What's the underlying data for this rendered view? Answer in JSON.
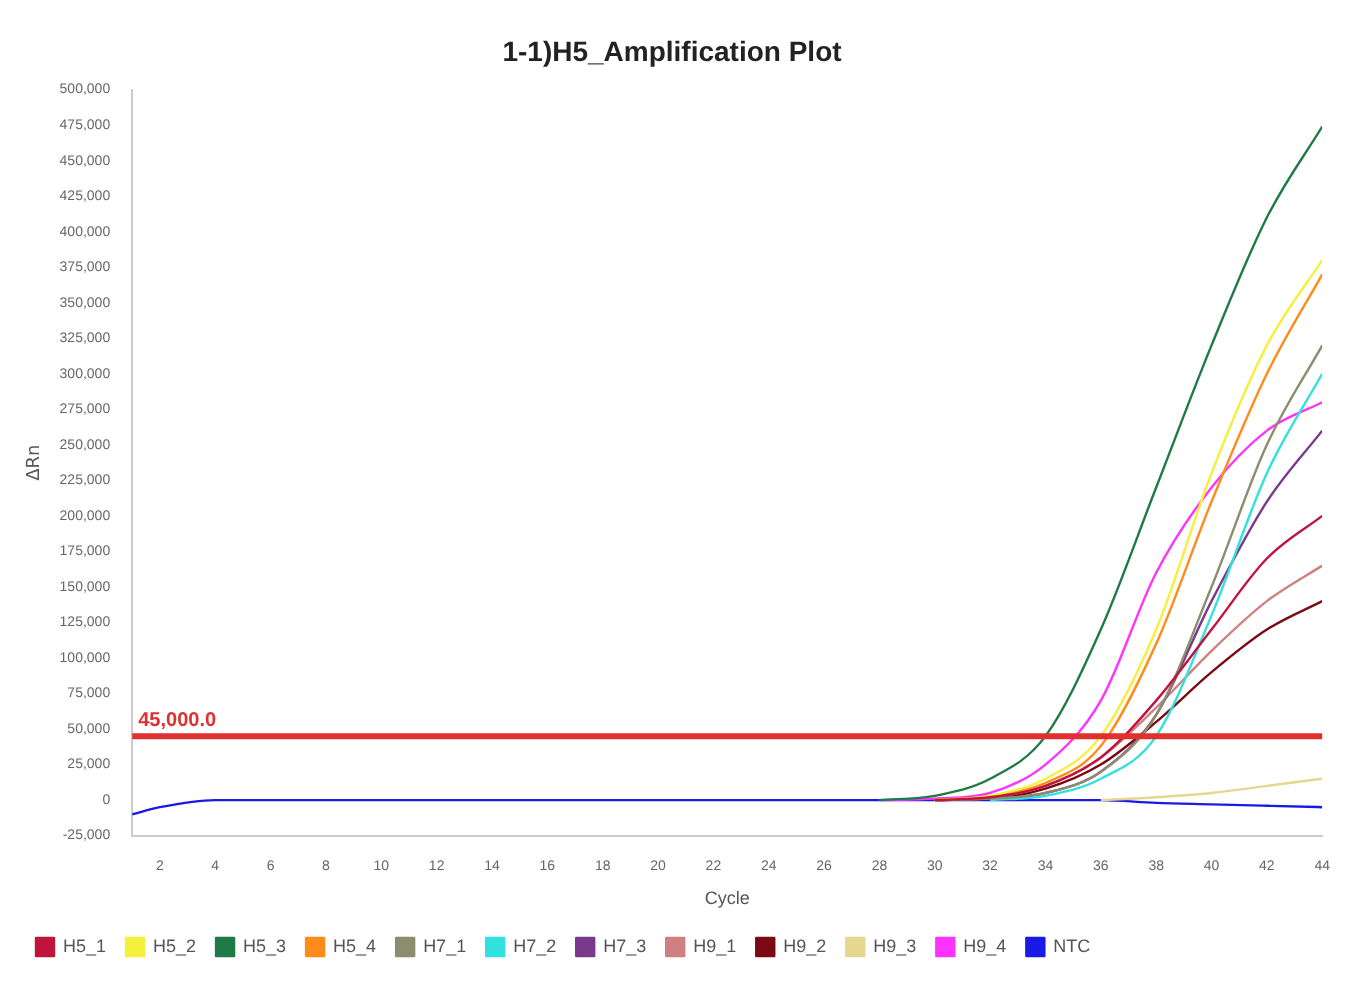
{
  "chart_data": {
    "type": "line",
    "title": "1-1)H5_Amplification Plot",
    "xlabel": "Cycle",
    "ylabel": "ΔRn",
    "x": [
      1,
      2,
      4,
      8,
      12,
      16,
      20,
      24,
      28,
      30,
      32,
      34,
      36,
      38,
      40,
      42,
      44
    ],
    "series": [
      {
        "name": "H5_1",
        "color": "#c0143c",
        "values": [
          null,
          null,
          null,
          null,
          null,
          null,
          null,
          null,
          null,
          0,
          2000,
          10000,
          30000,
          70000,
          120000,
          170000,
          200000
        ]
      },
      {
        "name": "H5_2",
        "color": "#f5f03c",
        "values": [
          null,
          null,
          null,
          null,
          null,
          null,
          null,
          null,
          null,
          0,
          3000,
          15000,
          45000,
          120000,
          230000,
          320000,
          380000
        ]
      },
      {
        "name": "H5_3",
        "color": "#1e7a46",
        "values": [
          null,
          null,
          null,
          null,
          null,
          null,
          null,
          null,
          0,
          3000,
          15000,
          45000,
          120000,
          220000,
          320000,
          410000,
          474000
        ]
      },
      {
        "name": "H5_4",
        "color": "#ff8c1a",
        "values": [
          null,
          null,
          null,
          null,
          null,
          null,
          null,
          null,
          null,
          0,
          3000,
          12000,
          38000,
          110000,
          210000,
          300000,
          370000
        ]
      },
      {
        "name": "H7_1",
        "color": "#8c8c6e",
        "values": [
          null,
          null,
          null,
          null,
          null,
          null,
          null,
          null,
          null,
          0,
          1000,
          5000,
          20000,
          60000,
          150000,
          250000,
          320000
        ]
      },
      {
        "name": "H7_2",
        "color": "#33e0e0",
        "values": [
          null,
          null,
          null,
          null,
          null,
          null,
          null,
          null,
          null,
          null,
          0,
          3000,
          15000,
          45000,
          130000,
          230000,
          300000
        ]
      },
      {
        "name": "H7_3",
        "color": "#7a3a8c",
        "values": [
          null,
          null,
          null,
          null,
          null,
          null,
          null,
          null,
          null,
          0,
          1000,
          5000,
          20000,
          60000,
          140000,
          210000,
          260000
        ]
      },
      {
        "name": "H9_1",
        "color": "#d08080",
        "values": [
          null,
          null,
          null,
          null,
          null,
          null,
          null,
          null,
          null,
          0,
          2000,
          10000,
          30000,
          65000,
          105000,
          140000,
          165000
        ]
      },
      {
        "name": "H9_2",
        "color": "#7a0a14",
        "values": [
          null,
          null,
          null,
          null,
          null,
          null,
          null,
          null,
          null,
          0,
          1000,
          8000,
          25000,
          55000,
          90000,
          120000,
          140000
        ]
      },
      {
        "name": "H9_3",
        "color": "#e6d690",
        "values": [
          null,
          null,
          null,
          null,
          null,
          null,
          null,
          null,
          null,
          null,
          null,
          null,
          0,
          2000,
          5000,
          10000,
          15000
        ]
      },
      {
        "name": "H9_4",
        "color": "#ff33ff",
        "values": [
          null,
          null,
          null,
          null,
          null,
          null,
          null,
          null,
          0,
          1000,
          5000,
          25000,
          70000,
          160000,
          220000,
          260000,
          280000
        ]
      },
      {
        "name": "NTC",
        "color": "#1a1ae6",
        "values": [
          -10000,
          -5000,
          0,
          0,
          0,
          0,
          0,
          0,
          0,
          0,
          0,
          0,
          0,
          -2000,
          -3000,
          -4000,
          -5000
        ]
      }
    ],
    "xlim": [
      1,
      44
    ],
    "xticks": [
      2,
      4,
      6,
      8,
      10,
      12,
      14,
      16,
      18,
      20,
      22,
      24,
      26,
      28,
      30,
      32,
      34,
      36,
      38,
      40,
      42,
      44
    ],
    "ylim": [
      -25000,
      500000
    ],
    "yticks": [
      {
        "value": -25000,
        "label": "-25,000"
      },
      0,
      {
        "value": 25000,
        "label": "25,000"
      },
      {
        "value": 50000,
        "label": "50,000"
      },
      {
        "value": 75000,
        "label": "75,000"
      },
      {
        "value": 100000,
        "label": "100,000"
      },
      {
        "value": 125000,
        "label": "125,000"
      },
      {
        "value": 150000,
        "label": "150,000"
      },
      {
        "value": 175000,
        "label": "175,000"
      },
      {
        "value": 200000,
        "label": "200,000"
      },
      {
        "value": 225000,
        "label": "225,000"
      },
      {
        "value": 250000,
        "label": "250,000"
      },
      {
        "value": 275000,
        "label": "275,000"
      },
      {
        "value": 300000,
        "label": "300,000"
      },
      {
        "value": 325000,
        "label": "325,000"
      },
      {
        "value": 350000,
        "label": "350,000"
      },
      {
        "value": 375000,
        "label": "375,000"
      },
      {
        "value": 400000,
        "label": "400,000"
      },
      {
        "value": 425000,
        "label": "425,000"
      },
      {
        "value": 450000,
        "label": "450,000"
      },
      {
        "value": 475000,
        "label": "475,000"
      },
      {
        "value": 500000,
        "label": "500,000"
      }
    ],
    "ref_lines": [
      {
        "axis": "y",
        "value": 45000,
        "label": "45,000.0",
        "color": "#e03030"
      }
    ],
    "grid": false,
    "legend": "bottom",
    "marker": "none",
    "line_style": "solid"
  }
}
